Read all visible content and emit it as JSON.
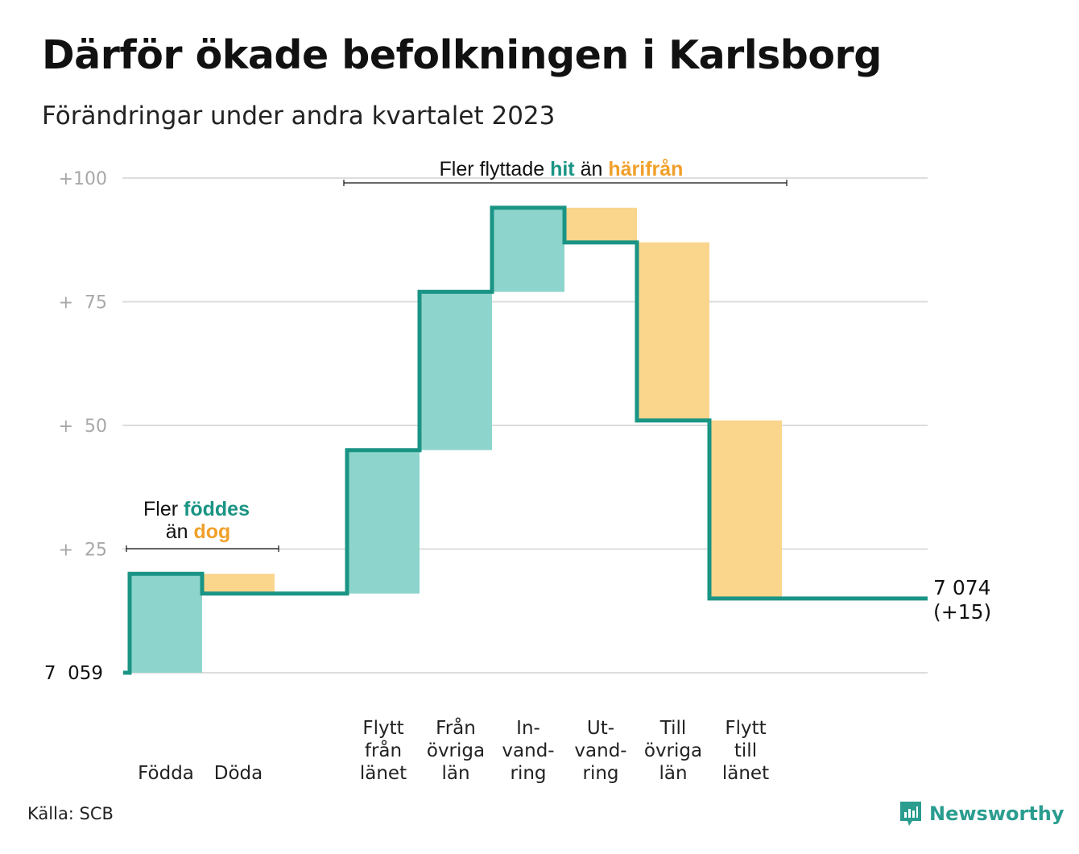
{
  "title": "Därför ökade befolkningen i Karlsborg",
  "subtitle": "Förändringar under andra kvartalet 2023",
  "source": "Källa: SCB",
  "brand": "Newsworthy",
  "colors": {
    "increase_line": "#1a9484",
    "increase_fill": "#8dd5cc",
    "decrease_fill": "#fad58c",
    "accent_orange": "#f0a02a",
    "grid": "#dddddd",
    "axis_text": "#a8a8a8"
  },
  "annotations": {
    "births": {
      "prefix": "Fler",
      "highlight_up": "föddes",
      "middle": "än",
      "highlight_down": "dog"
    },
    "migration": {
      "prefix": "Fler flyttade",
      "highlight_up": "hit",
      "middle": "än",
      "highlight_down": "härifrån"
    }
  },
  "chart_data": {
    "type": "waterfall",
    "title": "Därför ökade befolkningen i Karlsborg",
    "subtitle": "Förändringar under andra kvartalet 2023",
    "start_value": 7059,
    "start_label": "7  059",
    "end_value": 7074,
    "end_label": [
      "7 074",
      "(+15)"
    ],
    "ylim": [
      0,
      100
    ],
    "yticks": [
      {
        "value": 100,
        "label": "+100"
      },
      {
        "value": 75,
        "label": "+  75"
      },
      {
        "value": 50,
        "label": "+  50"
      },
      {
        "value": 25,
        "label": "+  25"
      }
    ],
    "grid": true,
    "categories": [
      {
        "label": [
          "Födda"
        ],
        "change": 20
      },
      {
        "label": [
          "Döda"
        ],
        "change": -4
      },
      {
        "label": [],
        "change": 0
      },
      {
        "label": [
          "Flytt",
          "från",
          "länet"
        ],
        "change": 29
      },
      {
        "label": [
          "Från",
          "övriga",
          "län"
        ],
        "change": 32
      },
      {
        "label": [
          "In-",
          "vand-",
          "ring"
        ],
        "change": 17
      },
      {
        "label": [
          "Ut-",
          "vand-",
          "ring"
        ],
        "change": -7
      },
      {
        "label": [
          "Till",
          "övriga",
          "län"
        ],
        "change": -36
      },
      {
        "label": [
          "Flytt",
          "till",
          "länet"
        ],
        "change": -36
      }
    ]
  }
}
